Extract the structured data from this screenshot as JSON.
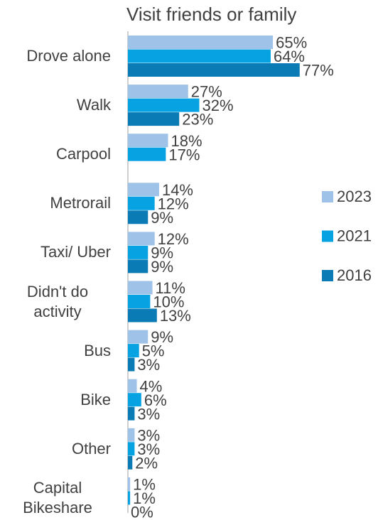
{
  "chart_data": {
    "type": "bar",
    "orientation": "horizontal",
    "title": "Visit friends or family",
    "categories": [
      "Drove alone",
      "Walk",
      "Carpool",
      "Metrorail",
      "Taxi/ Uber",
      "Didn't do activity",
      "Bus",
      "Bike",
      "Other",
      "Capital Bikeshare"
    ],
    "series": [
      {
        "name": "2023",
        "color": "#9fc3e8",
        "values": [
          65,
          27,
          18,
          14,
          12,
          11,
          9,
          4,
          3,
          1
        ],
        "value_labels": [
          "65%",
          "27%",
          "18%",
          "14%",
          "12%",
          "11%",
          "9%",
          "4%",
          "3%",
          "1%"
        ]
      },
      {
        "name": "2021",
        "color": "#06a2e2",
        "values": [
          64,
          32,
          17,
          12,
          9,
          10,
          5,
          6,
          3,
          1
        ],
        "value_labels": [
          "64%",
          "32%",
          "17%",
          "12%",
          "9%",
          "10%",
          "5%",
          "6%",
          "3%",
          "1%"
        ]
      },
      {
        "name": "2016",
        "color": "#0b7bb5",
        "values": [
          77,
          23,
          null,
          9,
          9,
          13,
          3,
          3,
          2,
          0
        ],
        "value_labels": [
          "77%",
          "23%",
          null,
          "9%",
          "9%",
          "13%",
          "3%",
          "3%",
          "2%",
          "0%"
        ]
      }
    ],
    "legend": "right"
  }
}
